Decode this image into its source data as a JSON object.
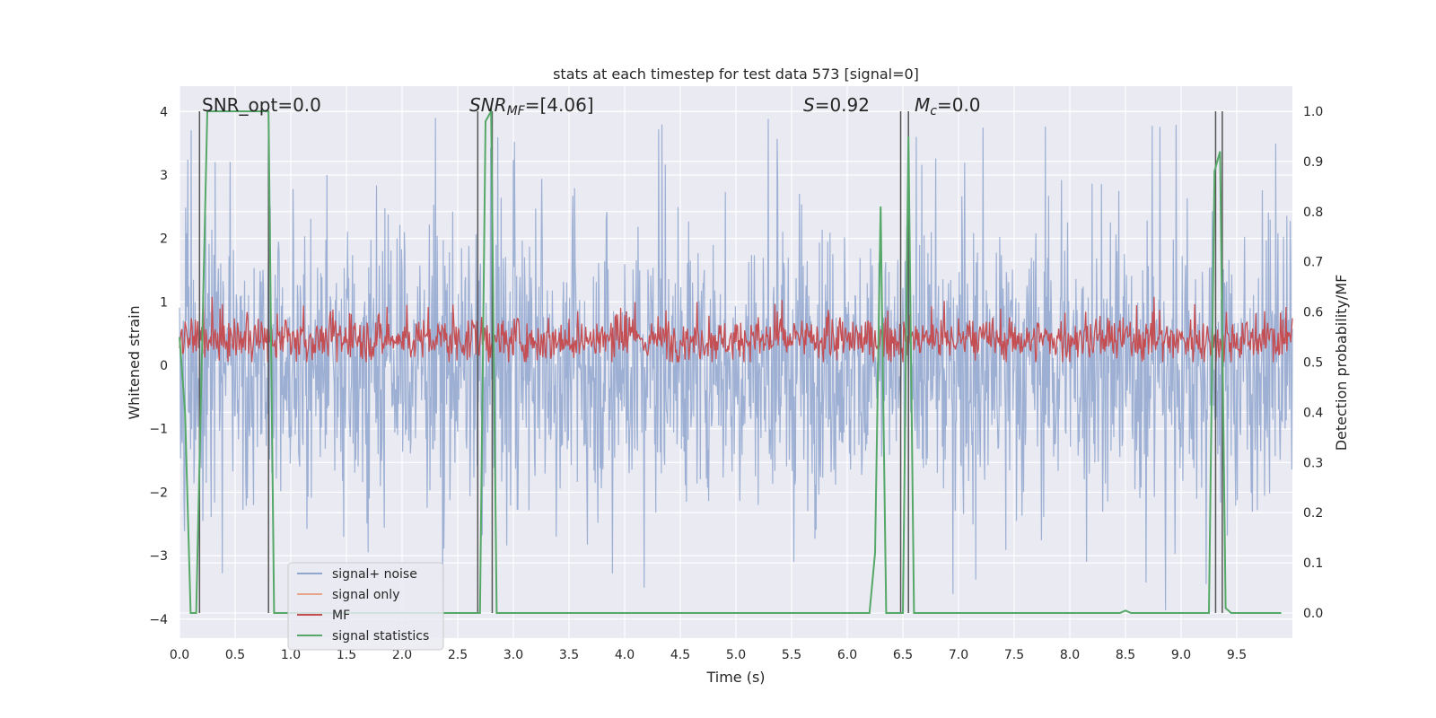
{
  "chart_data": {
    "type": "line",
    "title": "stats at each timestep for test data 573 [signal=0]",
    "xlabel": "Time (s)",
    "ylabel": "Whitened strain",
    "ylabel_right": "Detection probability/MF",
    "xlim": [
      0.0,
      10.0
    ],
    "ylim": [
      -4.3,
      4.4
    ],
    "ylim_right": [
      -0.05,
      1.05
    ],
    "xticks": [
      "0.0",
      "0.5",
      "1.0",
      "1.5",
      "2.0",
      "2.5",
      "3.0",
      "3.5",
      "4.0",
      "4.5",
      "5.0",
      "5.5",
      "6.0",
      "6.5",
      "7.0",
      "7.5",
      "8.0",
      "8.5",
      "9.0",
      "9.5"
    ],
    "yticks": [
      "-4",
      "-3",
      "-2",
      "-1",
      "0",
      "1",
      "2",
      "3",
      "4"
    ],
    "yticks_right": [
      "0.0",
      "0.1",
      "0.2",
      "0.3",
      "0.4",
      "0.5",
      "0.6",
      "0.7",
      "0.8",
      "0.9",
      "1.0"
    ],
    "grid": true,
    "legend_position": "lower-left",
    "annotations": {
      "snr_opt": "SNR_opt=0.0",
      "snr_mf_main": "SNR",
      "snr_mf_sub": "MF",
      "snr_mf_val": "=[4.06]",
      "s_var": "S",
      "s_val": "=0.92",
      "mc_main": "M",
      "mc_sub": "c",
      "mc_val": "=0.0"
    },
    "series": [
      {
        "name": "signal+ noise",
        "color": "#8fa6cf",
        "axis": "left",
        "description": "noise band roughly -2 to 2, peaks near ±4"
      },
      {
        "name": "signal only",
        "color": "#e8a488",
        "axis": "left",
        "values": []
      },
      {
        "name": "MF",
        "color": "#c44e52",
        "axis": "right",
        "description": "fluctuates between 0.5 and 0.6"
      },
      {
        "name": "signal statistics",
        "color": "#55a868",
        "axis": "right",
        "x": [
          0.0,
          0.05,
          0.1,
          0.15,
          0.2,
          0.25,
          0.3,
          0.8,
          0.85,
          2.7,
          2.75,
          2.8,
          2.85,
          2.9,
          6.2,
          6.25,
          6.3,
          6.35,
          6.4,
          6.45,
          6.5,
          6.55,
          6.6,
          6.65,
          8.45,
          8.5,
          8.55,
          9.25,
          9.3,
          9.35,
          9.4,
          9.45,
          9.9
        ],
        "values": [
          0.55,
          0.4,
          0.0,
          0.0,
          0.5,
          1.0,
          1.0,
          1.0,
          0.0,
          0.0,
          0.98,
          1.0,
          0.0,
          0.0,
          0.0,
          0.12,
          0.81,
          0.0,
          0.0,
          0.0,
          0.0,
          0.95,
          0.0,
          0.0,
          0.0,
          0.005,
          0.0,
          0.0,
          0.88,
          0.92,
          0.01,
          0.0,
          0.0
        ]
      }
    ],
    "vlines_x": [
      0.18,
      0.8,
      2.68,
      2.81,
      6.48,
      6.55,
      9.31,
      9.37
    ]
  }
}
